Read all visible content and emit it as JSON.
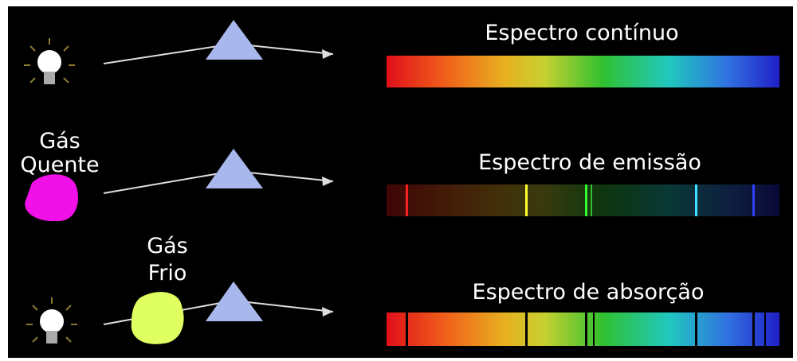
{
  "rows": [
    {
      "title": "Espectro contínuo"
    },
    {
      "source": [
        "Gás",
        "Quente"
      ],
      "title": "Espectro de emissão"
    },
    {
      "source": [
        "Gás",
        "Frio"
      ],
      "title": "Espectro de absorção"
    }
  ]
}
